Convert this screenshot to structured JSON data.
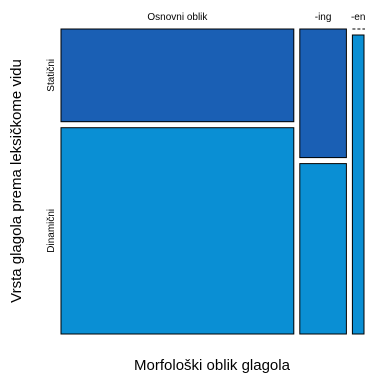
{
  "chart_data": {
    "type": "mosaic",
    "title": "",
    "xlabel": "Morfološki oblik glagola",
    "ylabel": "Vrsta glagola prema leksičkome vidu",
    "x_categories": [
      "Osnovni oblik",
      "-ing",
      "-en"
    ],
    "y_categories": [
      "Statični",
      "Dinamični"
    ],
    "column_proportions": [
      0.8,
      0.16,
      0.04
    ],
    "conditional_proportions": {
      "Osnovni oblik": {
        "Statični": 0.31,
        "Dinamični": 0.69
      },
      "-ing": {
        "Statični": 0.43,
        "Dinamični": 0.57
      },
      "-en": {
        "Statični": 0.0,
        "Dinamični": 1.0
      }
    },
    "colors": {
      "Statični": "#1a5fb4",
      "Dinamični": "#0a8fd4"
    }
  }
}
